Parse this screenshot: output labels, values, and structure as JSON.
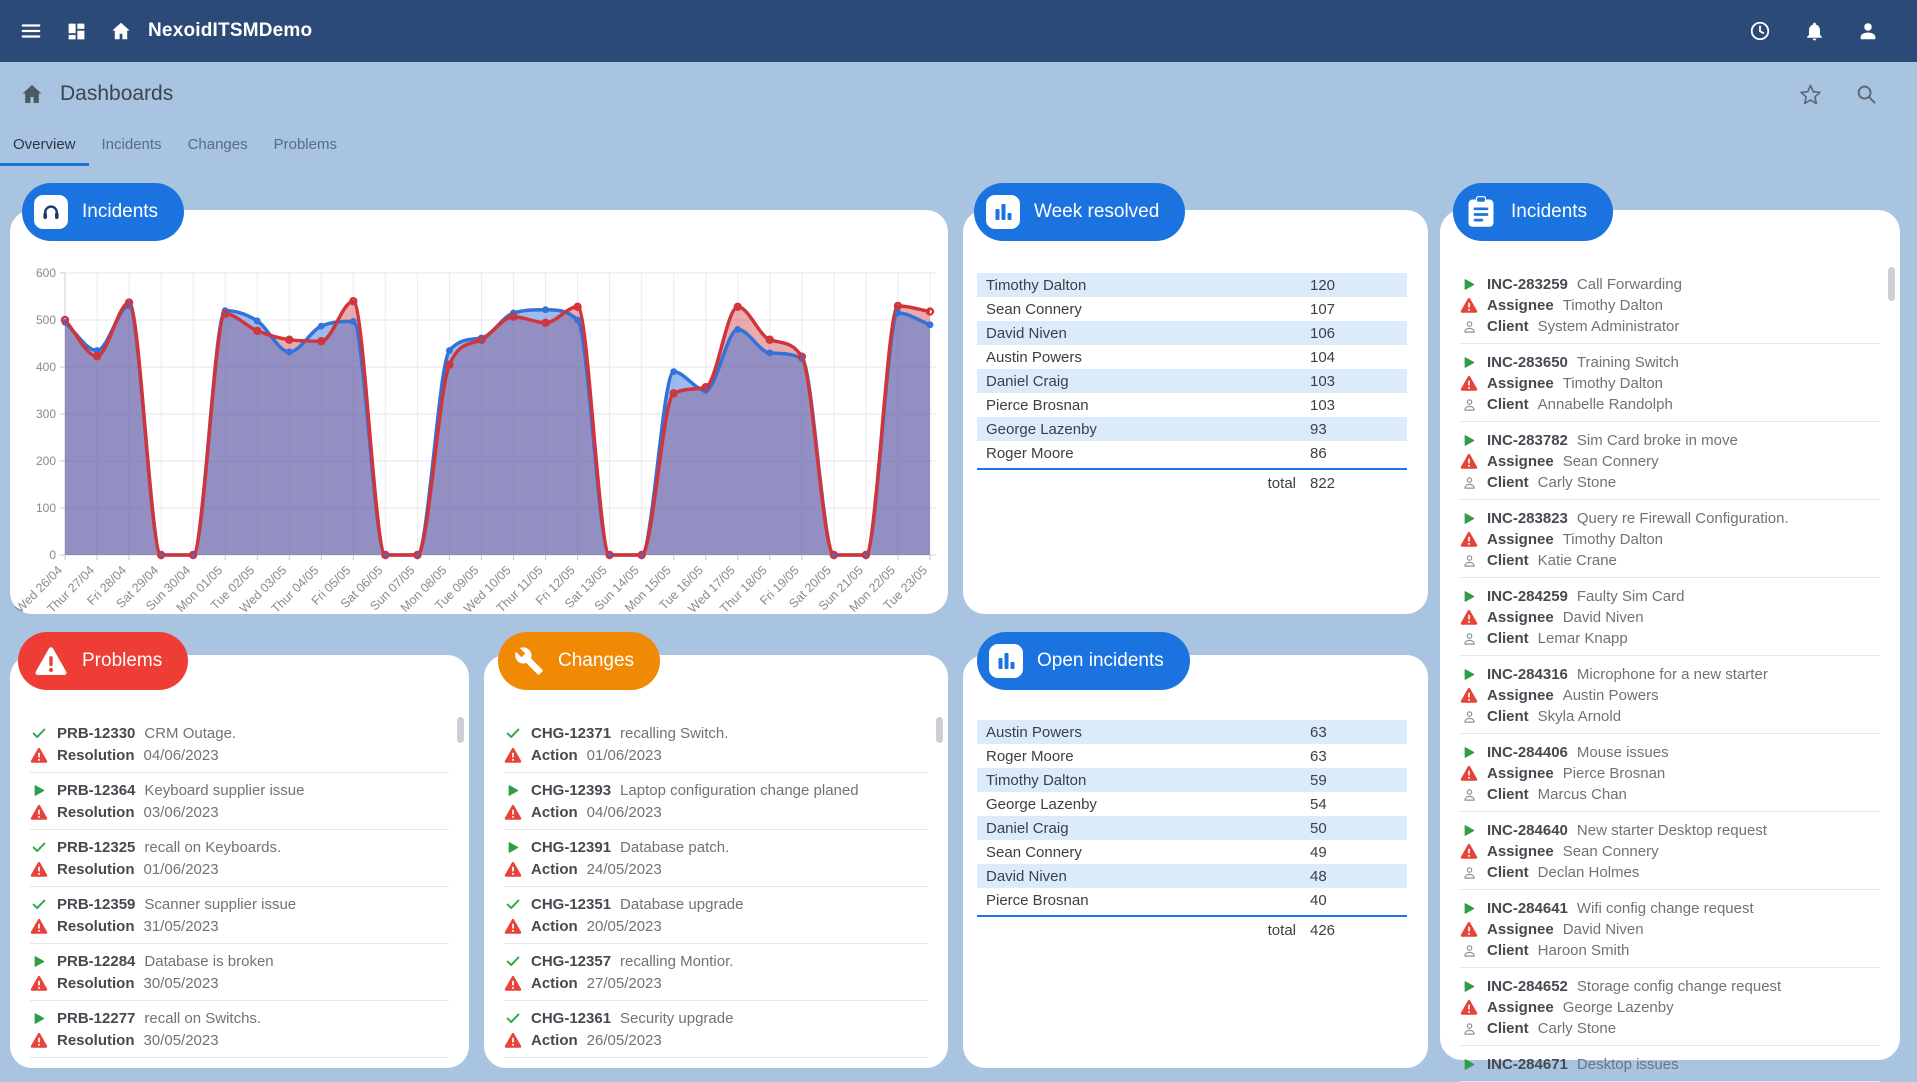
{
  "navbar": {
    "title": "NexoidITSMDemo",
    "icons": [
      "menu-icon",
      "dashboard-grid-icon",
      "home-icon",
      "history-clock-icon",
      "notifications-bell-icon",
      "account-person-icon"
    ]
  },
  "header": {
    "title": "Dashboards",
    "icons": [
      "home-icon",
      "favorite-star-icon",
      "search-icon"
    ]
  },
  "tabs": [
    {
      "label": "Overview",
      "active": true
    },
    {
      "label": "Incidents",
      "active": false
    },
    {
      "label": "Changes",
      "active": false
    },
    {
      "label": "Problems",
      "active": false
    }
  ],
  "cards": {
    "incidents_chart": {
      "pill": "Incidents",
      "pill_icon": "headset-icon"
    },
    "week_resolved": {
      "pill": "Week resolved",
      "pill_icon": "bar-chart-icon",
      "rows": [
        {
          "name": "Timothy Dalton",
          "value": "120"
        },
        {
          "name": "Sean Connery",
          "value": "107"
        },
        {
          "name": "David Niven",
          "value": "106"
        },
        {
          "name": "Austin Powers",
          "value": "104"
        },
        {
          "name": "Daniel Craig",
          "value": "103"
        },
        {
          "name": "Pierce Brosnan",
          "value": "103"
        },
        {
          "name": "George Lazenby",
          "value": "93"
        },
        {
          "name": "Roger Moore",
          "value": "86"
        }
      ],
      "total_label": "total",
      "total": "822"
    },
    "open_incidents": {
      "pill": "Open incidents",
      "pill_icon": "bar-chart-icon",
      "rows": [
        {
          "name": "Austin Powers",
          "value": "63"
        },
        {
          "name": "Roger Moore",
          "value": "63"
        },
        {
          "name": "Timothy Dalton",
          "value": "59"
        },
        {
          "name": "George Lazenby",
          "value": "54"
        },
        {
          "name": "Daniel Craig",
          "value": "50"
        },
        {
          "name": "Sean Connery",
          "value": "49"
        },
        {
          "name": "David Niven",
          "value": "48"
        },
        {
          "name": "Pierce Brosnan",
          "value": "40"
        }
      ],
      "total_label": "total",
      "total": "426"
    },
    "problems": {
      "pill": "Problems",
      "pill_icon": "warning-triangle-icon",
      "date_label": "Resolution",
      "items": [
        {
          "icon": "check-icon",
          "id": "PRB-12330",
          "title": "CRM Outage.",
          "date": "04/06/2023"
        },
        {
          "icon": "play-icon",
          "id": "PRB-12364",
          "title": "Keyboard supplier issue",
          "date": "03/06/2023"
        },
        {
          "icon": "check-icon",
          "id": "PRB-12325",
          "title": "recall on Keyboards.",
          "date": "01/06/2023"
        },
        {
          "icon": "check-icon",
          "id": "PRB-12359",
          "title": "Scanner supplier issue",
          "date": "31/05/2023"
        },
        {
          "icon": "play-icon",
          "id": "PRB-12284",
          "title": "Database is broken",
          "date": "30/05/2023"
        },
        {
          "icon": "play-icon",
          "id": "PRB-12277",
          "title": "recall on Switchs.",
          "date": "30/05/2023"
        }
      ]
    },
    "changes": {
      "pill": "Changes",
      "pill_icon": "wrench-icon",
      "date_label": "Action",
      "items": [
        {
          "icon": "check-icon",
          "id": "CHG-12371",
          "title": "recalling Switch.",
          "date": "01/06/2023"
        },
        {
          "icon": "play-icon",
          "id": "CHG-12393",
          "title": "Laptop configuration change planed",
          "date": "04/06/2023"
        },
        {
          "icon": "play-icon",
          "id": "CHG-12391",
          "title": "Database patch.",
          "date": "24/05/2023"
        },
        {
          "icon": "check-icon",
          "id": "CHG-12351",
          "title": "Database upgrade",
          "date": "20/05/2023"
        },
        {
          "icon": "check-icon",
          "id": "CHG-12357",
          "title": "recalling Montior.",
          "date": "27/05/2023"
        },
        {
          "icon": "check-icon",
          "id": "CHG-12361",
          "title": "Security upgrade",
          "date": "26/05/2023"
        }
      ]
    },
    "incidents_list": {
      "pill": "Incidents",
      "pill_icon": "clipboard-icon",
      "assignee_label": "Assignee",
      "client_label": "Client",
      "items": [
        {
          "id": "INC-283259",
          "title": "Call Forwarding",
          "assignee": "Timothy Dalton",
          "client": "System Administrator"
        },
        {
          "id": "INC-283650",
          "title": "Training Switch",
          "assignee": "Timothy Dalton",
          "client": "Annabelle Randolph"
        },
        {
          "id": "INC-283782",
          "title": "Sim Card broke in move",
          "assignee": "Sean Connery",
          "client": "Carly Stone"
        },
        {
          "id": "INC-283823",
          "title": "Query re Firewall Configuration.",
          "assignee": "Timothy Dalton",
          "client": "Katie Crane"
        },
        {
          "id": "INC-284259",
          "title": "Faulty Sim Card",
          "assignee": "David Niven",
          "client": "Lemar Knapp"
        },
        {
          "id": "INC-284316",
          "title": "Microphone for a new starter",
          "assignee": "Austin Powers",
          "client": "Skyla Arnold"
        },
        {
          "id": "INC-284406",
          "title": "Mouse issues",
          "assignee": "Pierce  Brosnan",
          "client": "Marcus Chan"
        },
        {
          "id": "INC-284640",
          "title": "New starter Desktop request",
          "assignee": "Sean Connery",
          "client": "Declan Holmes"
        },
        {
          "id": "INC-284641",
          "title": "Wifi config change request",
          "assignee": "David Niven",
          "client": "Haroon Smith"
        },
        {
          "id": "INC-284652",
          "title": "Storage config change request",
          "assignee": "George Lazenby",
          "client": "Carly Stone"
        },
        {
          "id": "INC-284671",
          "title": "Desktop issues",
          "assignee": "",
          "client": ""
        }
      ]
    }
  },
  "chart_data": {
    "type": "area",
    "title": "Incidents",
    "xlabel": "",
    "ylabel": "",
    "ylim": [
      0,
      600
    ],
    "yticks": [
      0,
      100,
      200,
      300,
      400,
      500,
      600
    ],
    "grid": true,
    "legend_position": "none",
    "categories": [
      "Wed 26/04",
      "Thur 27/04",
      "Fri 28/04",
      "Sat 29/04",
      "Sun 30/04",
      "Mon 01/05",
      "Tue 02/05",
      "Wed 03/05",
      "Thur 04/05",
      "Fri 05/05",
      "Sat 06/05",
      "Sun 07/05",
      "Mon 08/05",
      "Tue 09/05",
      "Wed 10/05",
      "Thur 11/05",
      "Fri 12/05",
      "Sat 13/05",
      "Sun 14/05",
      "Mon 15/05",
      "Tue 16/05",
      "Wed 17/05",
      "Thur 18/05",
      "Fri 19/05",
      "Sat 20/05",
      "Sun 21/05",
      "Mon 22/05",
      "Tue 23/05"
    ],
    "series": [
      {
        "name": "blue",
        "color": "#3272d9",
        "values": [
          495,
          435,
          530,
          0,
          0,
          520,
          498,
          432,
          487,
          497,
          0,
          0,
          435,
          462,
          515,
          522,
          500,
          0,
          0,
          390,
          350,
          480,
          430,
          418,
          0,
          0,
          515,
          490
        ]
      },
      {
        "name": "red",
        "color": "#d0353b",
        "values": [
          500,
          423,
          537,
          0,
          0,
          513,
          477,
          458,
          455,
          540,
          0,
          0,
          405,
          458,
          507,
          494,
          528,
          0,
          0,
          344,
          357,
          528,
          458,
          422,
          0,
          0,
          530,
          518
        ]
      }
    ]
  },
  "colors": {
    "navbar": "#2b4a77",
    "background": "#a8c4e1",
    "pill_blue": "#1b73e0",
    "pill_red": "#ee3d35",
    "pill_orange": "#f08a04",
    "row_stripe": "#dcebf9",
    "total_line": "#1a73e8",
    "chart_blue": "#3272d9",
    "chart_red": "#d0353b",
    "icon_green": "#2f9e44",
    "icon_red": "#e84338"
  }
}
